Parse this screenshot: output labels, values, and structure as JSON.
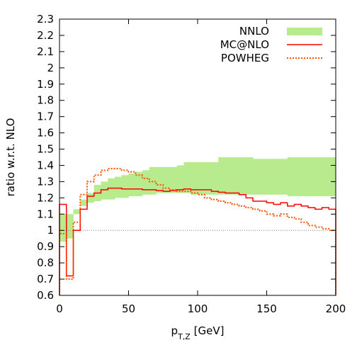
{
  "chart_data": {
    "type": "line",
    "title": "",
    "xlabel": {
      "main": "p",
      "sub": "T,Z",
      "unit": " [GeV]"
    },
    "ylabel": "ratio w.r.t. NLO",
    "xlim": [
      0,
      200
    ],
    "ylim": [
      0.6,
      2.3
    ],
    "xticks": [
      0,
      50,
      100,
      150,
      200
    ],
    "yticks": [
      0.6,
      0.7,
      0.8,
      0.9,
      1,
      1.1,
      1.2,
      1.3,
      1.4,
      1.5,
      1.6,
      1.7,
      1.8,
      1.9,
      2,
      2.1,
      2.2,
      2.3
    ],
    "grid": false,
    "legend_position": "top-right",
    "reference_line": {
      "y": 1,
      "style": "dotted",
      "color": "#888888"
    },
    "series": [
      {
        "name": "NNLO",
        "kind": "band",
        "color": "#b8ea8e",
        "edges": [
          0,
          5,
          10,
          15,
          20,
          25,
          30,
          35,
          40,
          45,
          50,
          55,
          60,
          65,
          70,
          75,
          80,
          85,
          90,
          95,
          100,
          105,
          110,
          115,
          120,
          125,
          130,
          135,
          140,
          145,
          150,
          155,
          160,
          165,
          170,
          175,
          180,
          185,
          190,
          195,
          200
        ],
        "low": [
          0.93,
          0.95,
          1.1,
          1.15,
          1.17,
          1.18,
          1.19,
          1.19,
          1.2,
          1.2,
          1.21,
          1.21,
          1.22,
          1.22,
          1.23,
          1.23,
          1.23,
          1.23,
          1.23,
          1.22,
          1.22,
          1.22,
          1.22,
          1.22,
          1.22,
          1.22,
          1.22,
          1.22,
          1.22,
          1.22,
          1.22,
          1.22,
          1.22,
          1.21,
          1.21,
          1.21,
          1.21,
          1.21,
          1.21,
          1.21
        ],
        "high": [
          1.1,
          1.1,
          1.13,
          1.19,
          1.23,
          1.28,
          1.3,
          1.32,
          1.33,
          1.34,
          1.35,
          1.36,
          1.37,
          1.39,
          1.39,
          1.39,
          1.39,
          1.4,
          1.42,
          1.42,
          1.42,
          1.42,
          1.42,
          1.45,
          1.45,
          1.45,
          1.45,
          1.45,
          1.44,
          1.44,
          1.44,
          1.44,
          1.44,
          1.45,
          1.45,
          1.45,
          1.45,
          1.45,
          1.45,
          1.45
        ]
      },
      {
        "name": "MC@NLO",
        "kind": "step",
        "color": "#ff0000",
        "style": "solid",
        "edges": [
          0,
          5,
          10,
          15,
          20,
          25,
          30,
          35,
          40,
          45,
          50,
          55,
          60,
          65,
          70,
          75,
          80,
          85,
          90,
          95,
          100,
          105,
          110,
          115,
          120,
          125,
          130,
          135,
          140,
          145,
          150,
          155,
          160,
          165,
          170,
          175,
          180,
          185,
          190,
          195,
          200
        ],
        "values": [
          1.16,
          0.72,
          1.0,
          1.13,
          1.21,
          1.23,
          1.25,
          1.26,
          1.26,
          1.255,
          1.255,
          1.255,
          1.25,
          1.25,
          1.245,
          1.24,
          1.245,
          1.25,
          1.255,
          1.25,
          1.25,
          1.25,
          1.24,
          1.235,
          1.23,
          1.23,
          1.22,
          1.2,
          1.18,
          1.18,
          1.17,
          1.16,
          1.17,
          1.15,
          1.16,
          1.15,
          1.14,
          1.13,
          1.14,
          1.13
        ]
      },
      {
        "name": "POWHEG",
        "kind": "step",
        "color": "#ff5500",
        "style": "dotted",
        "edges": [
          0,
          5,
          10,
          15,
          20,
          25,
          30,
          35,
          40,
          45,
          50,
          55,
          60,
          65,
          70,
          75,
          80,
          85,
          90,
          95,
          100,
          105,
          110,
          115,
          120,
          125,
          130,
          135,
          140,
          145,
          150,
          155,
          160,
          165,
          170,
          175,
          180,
          185,
          190,
          195,
          200
        ],
        "values": [
          0.98,
          0.7,
          1.05,
          1.22,
          1.3,
          1.34,
          1.37,
          1.38,
          1.38,
          1.37,
          1.36,
          1.34,
          1.32,
          1.3,
          1.28,
          1.26,
          1.25,
          1.24,
          1.24,
          1.23,
          1.22,
          1.2,
          1.19,
          1.18,
          1.17,
          1.16,
          1.15,
          1.14,
          1.13,
          1.12,
          1.1,
          1.09,
          1.1,
          1.08,
          1.07,
          1.05,
          1.03,
          1.02,
          1.01,
          1.0
        ]
      }
    ]
  }
}
